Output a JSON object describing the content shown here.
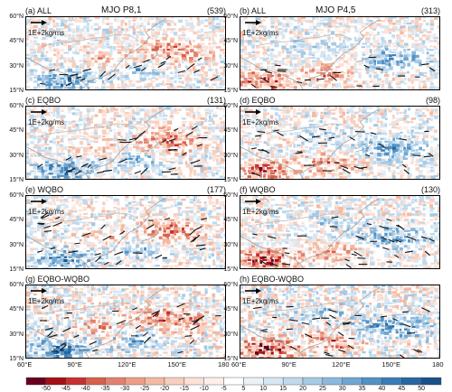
{
  "panels": [
    {
      "id": "a",
      "label": "(a) ALL",
      "center": "MJO P8,1",
      "count": "(539)",
      "ref": "1E+2kg/ms",
      "pattern": "a"
    },
    {
      "id": "b",
      "label": "(b) ALL",
      "center": "MJO P4,5",
      "count": "(313)",
      "ref": "1E+2kg/ms",
      "pattern": "b"
    },
    {
      "id": "c",
      "label": "(c) EQBO",
      "center": "",
      "count": "(131)",
      "ref": "1E+2kg/ms",
      "pattern": "a"
    },
    {
      "id": "d",
      "label": "(d) EQBO",
      "center": "",
      "count": "(98)",
      "ref": "1E+2kg/ms",
      "pattern": "b"
    },
    {
      "id": "e",
      "label": "(e) WQBO",
      "center": "",
      "count": "(177)",
      "ref": "1E+2kg/ms",
      "pattern": "a"
    },
    {
      "id": "f",
      "label": "(f) WQBO",
      "center": "",
      "count": "(130)",
      "ref": "1E+2kg/ms",
      "pattern": "b"
    },
    {
      "id": "g",
      "label": "(g) EQBO-WQBO",
      "center": "",
      "count": "",
      "ref": "1E+2kg/ms",
      "pattern": "a"
    },
    {
      "id": "h",
      "label": "(h) EQBO-WQBO",
      "center": "",
      "count": "",
      "ref": "1E+2kg/ms",
      "pattern": "b"
    }
  ],
  "lat_ticks": [
    "60°N",
    "45°N",
    "30°N",
    "15°N"
  ],
  "lon_ticks": [
    "60°E",
    "90°E",
    "120°E",
    "150°E",
    "180"
  ],
  "colorbar": {
    "ticks": [
      "-50",
      "-45",
      "-40",
      "-35",
      "-30",
      "-25",
      "-20",
      "-15",
      "-10",
      "-5",
      "5",
      "10",
      "15",
      "20",
      "25",
      "30",
      "35",
      "40",
      "45",
      "50"
    ],
    "colors": [
      "#67001f",
      "#a50f15",
      "#c8302f",
      "#d6604d",
      "#e3816f",
      "#ee9e86",
      "#f4b9a2",
      "#f8cfbe",
      "#fbe1d6",
      "#fdf0ea",
      "#ffffff",
      "#eaf2f8",
      "#d6e6f2",
      "#c0d9ec",
      "#a6cae4",
      "#8bb8dc",
      "#6ea5d1",
      "#5192c5",
      "#3a7db6",
      "#2767a1",
      "#1a5189"
    ]
  }
}
